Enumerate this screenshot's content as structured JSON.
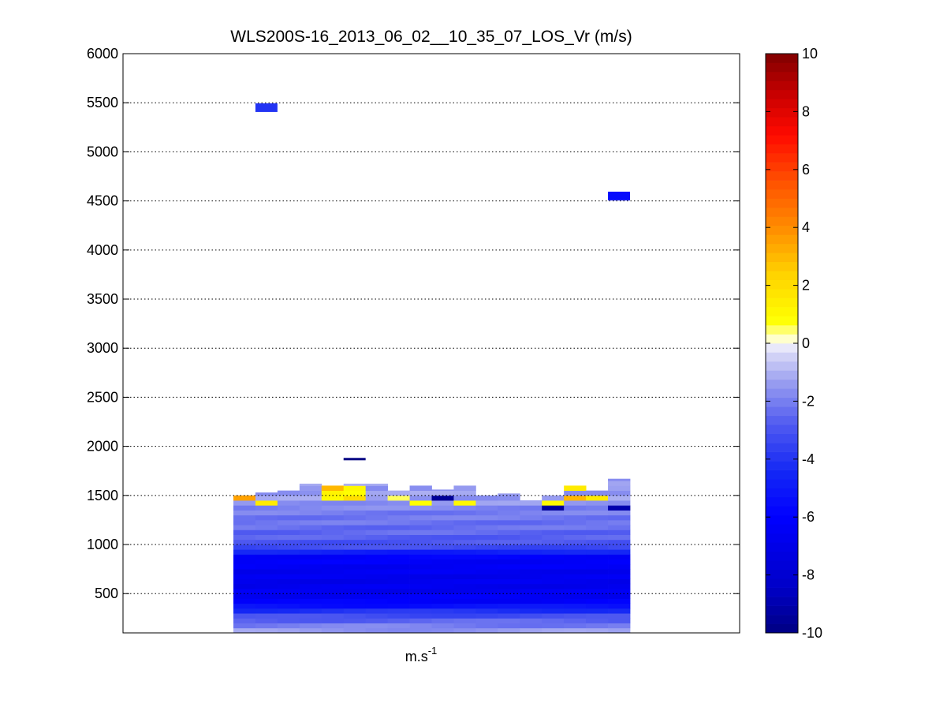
{
  "chart_data": {
    "type": "heatmap",
    "title": "WLS200S-16_2013_06_02__10_35_07_LOS_Vr (m/s)",
    "xlabel": {
      "base": "m.s",
      "superscript": "-1"
    },
    "ylabel": "",
    "ylim": [
      100,
      6000
    ],
    "yticks": [
      "500",
      "1000",
      "1500",
      "2000",
      "2500",
      "3000",
      "3500",
      "4000",
      "4500",
      "5000",
      "5500",
      "6000"
    ],
    "ygrid": "dotted",
    "colorbar": {
      "placement": "right",
      "range": [
        -10,
        10
      ],
      "ticks": [
        "-10",
        "-8",
        "-6",
        "-4",
        "-2",
        "0",
        "2",
        "4",
        "6",
        "8",
        "10"
      ],
      "colormap": "blue-white-yellow-red"
    },
    "profile_columns": {
      "count": 18,
      "range_gate_m": 50,
      "velocity_by_altitude": [
        {
          "altitude_m": 125,
          "value": -1.5
        },
        {
          "altitude_m": 200,
          "value": -2.3
        },
        {
          "altitude_m": 300,
          "value": -3.5
        },
        {
          "altitude_m": 400,
          "value": -6.0
        },
        {
          "altitude_m": 500,
          "value": -6.6
        },
        {
          "altitude_m": 600,
          "value": -6.8
        },
        {
          "altitude_m": 700,
          "value": -6.7
        },
        {
          "altitude_m": 800,
          "value": -6.4
        },
        {
          "altitude_m": 900,
          "value": -6.0
        },
        {
          "altitude_m": 950,
          "value": -3.4
        },
        {
          "altitude_m": 1050,
          "value": -2.8
        },
        {
          "altitude_m": 1150,
          "value": -2.4
        },
        {
          "altitude_m": 1250,
          "value": -2.2
        },
        {
          "altitude_m": 1350,
          "value": -2.0
        },
        {
          "altitude_m": 1450,
          "value": -1.4
        }
      ],
      "column_tops_m": [
        1500,
        1530,
        1550,
        1620,
        1600,
        1620,
        1620,
        1550,
        1600,
        1560,
        1600,
        1500,
        1520,
        1450,
        1500,
        1600,
        1550,
        1670
      ],
      "notable_cells": [
        {
          "column": 0,
          "altitude_m": 1490,
          "value": 3.5
        },
        {
          "column": 1,
          "altitude_m": 1460,
          "value": 1.5
        },
        {
          "column": 4,
          "altitude_m": 1590,
          "value": 3.0
        },
        {
          "column": 4,
          "altitude_m": 1530,
          "value": 1.2
        },
        {
          "column": 4,
          "altitude_m": 1490,
          "value": 1.0
        },
        {
          "column": 5,
          "altitude_m": 1610,
          "value": 1.0
        },
        {
          "column": 5,
          "altitude_m": 1540,
          "value": 0.8
        },
        {
          "column": 5,
          "altitude_m": 1490,
          "value": 2.0
        },
        {
          "column": 7,
          "altitude_m": 1590,
          "value": 1.0
        },
        {
          "column": 7,
          "altitude_m": 1500,
          "value": 0.5
        },
        {
          "column": 8,
          "altitude_m": 1440,
          "value": 0.8
        },
        {
          "column": 9,
          "altitude_m": 1490,
          "value": -9.5
        },
        {
          "column": 10,
          "altitude_m": 1450,
          "value": 1.0
        },
        {
          "column": 14,
          "altitude_m": 1440,
          "value": 1.0
        },
        {
          "column": 14,
          "altitude_m": 1390,
          "value": -9.5
        },
        {
          "column": 15,
          "altitude_m": 1590,
          "value": 1.5
        },
        {
          "column": 15,
          "altitude_m": 1520,
          "value": 3.0
        },
        {
          "column": 16,
          "altitude_m": 1500,
          "value": 1.5
        },
        {
          "column": 17,
          "altitude_m": 1390,
          "value": -9.0
        }
      ],
      "isolated_cells": [
        {
          "column": 1,
          "altitude_m": 5450,
          "value": -4.0
        },
        {
          "column": 17,
          "altitude_m": 4550,
          "value": -5.5
        },
        {
          "column": 5,
          "altitude_m": 1870,
          "value": -10.0
        }
      ]
    }
  }
}
